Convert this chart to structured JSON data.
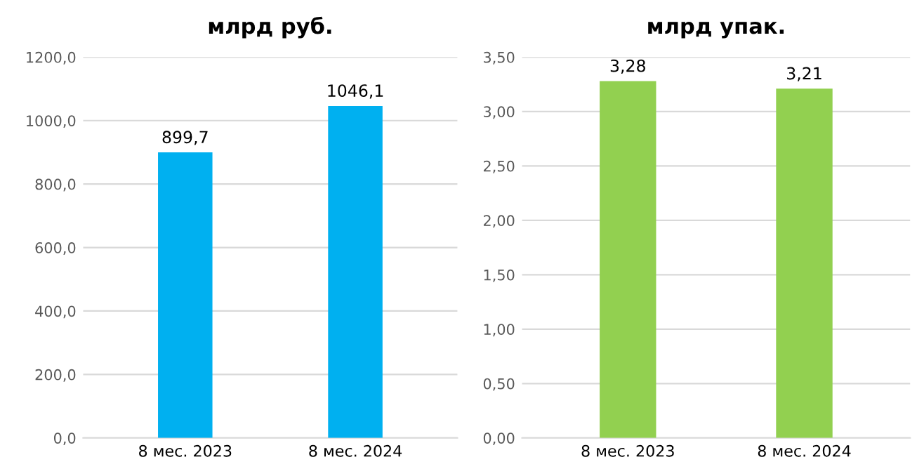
{
  "chart_data": [
    {
      "type": "bar",
      "title": "млрд руб.",
      "categories": [
        "8 мес. 2023",
        "8 мес. 2024"
      ],
      "values": [
        899.7,
        1046.1
      ],
      "value_labels": [
        "899,7",
        "1046,1"
      ],
      "color": "#00b0f0",
      "ylim": [
        0,
        1200
      ],
      "yticks": [
        {
          "value": 0,
          "label": "0,0"
        },
        {
          "value": 200,
          "label": "200,0"
        },
        {
          "value": 400,
          "label": "400,0"
        },
        {
          "value": 600,
          "label": "600,0"
        },
        {
          "value": 800,
          "label": "800,0"
        },
        {
          "value": 1000,
          "label": "1000,0"
        },
        {
          "value": 1200,
          "label": "1200,0"
        }
      ],
      "grid": "y"
    },
    {
      "type": "bar",
      "title": "млрд упак.",
      "categories": [
        "8 мес. 2023",
        "8 мес. 2024"
      ],
      "values": [
        3.28,
        3.21
      ],
      "value_labels": [
        "3,28",
        "3,21"
      ],
      "color": "#92d050",
      "ylim": [
        0,
        3.5
      ],
      "yticks": [
        {
          "value": 0,
          "label": "0,00"
        },
        {
          "value": 0.5,
          "label": "0,50"
        },
        {
          "value": 1.0,
          "label": "1,00"
        },
        {
          "value": 1.5,
          "label": "1,50"
        },
        {
          "value": 2.0,
          "label": "2,00"
        },
        {
          "value": 2.5,
          "label": "2,50"
        },
        {
          "value": 3.0,
          "label": "3,00"
        },
        {
          "value": 3.5,
          "label": "3,50"
        }
      ],
      "grid": "y"
    }
  ]
}
